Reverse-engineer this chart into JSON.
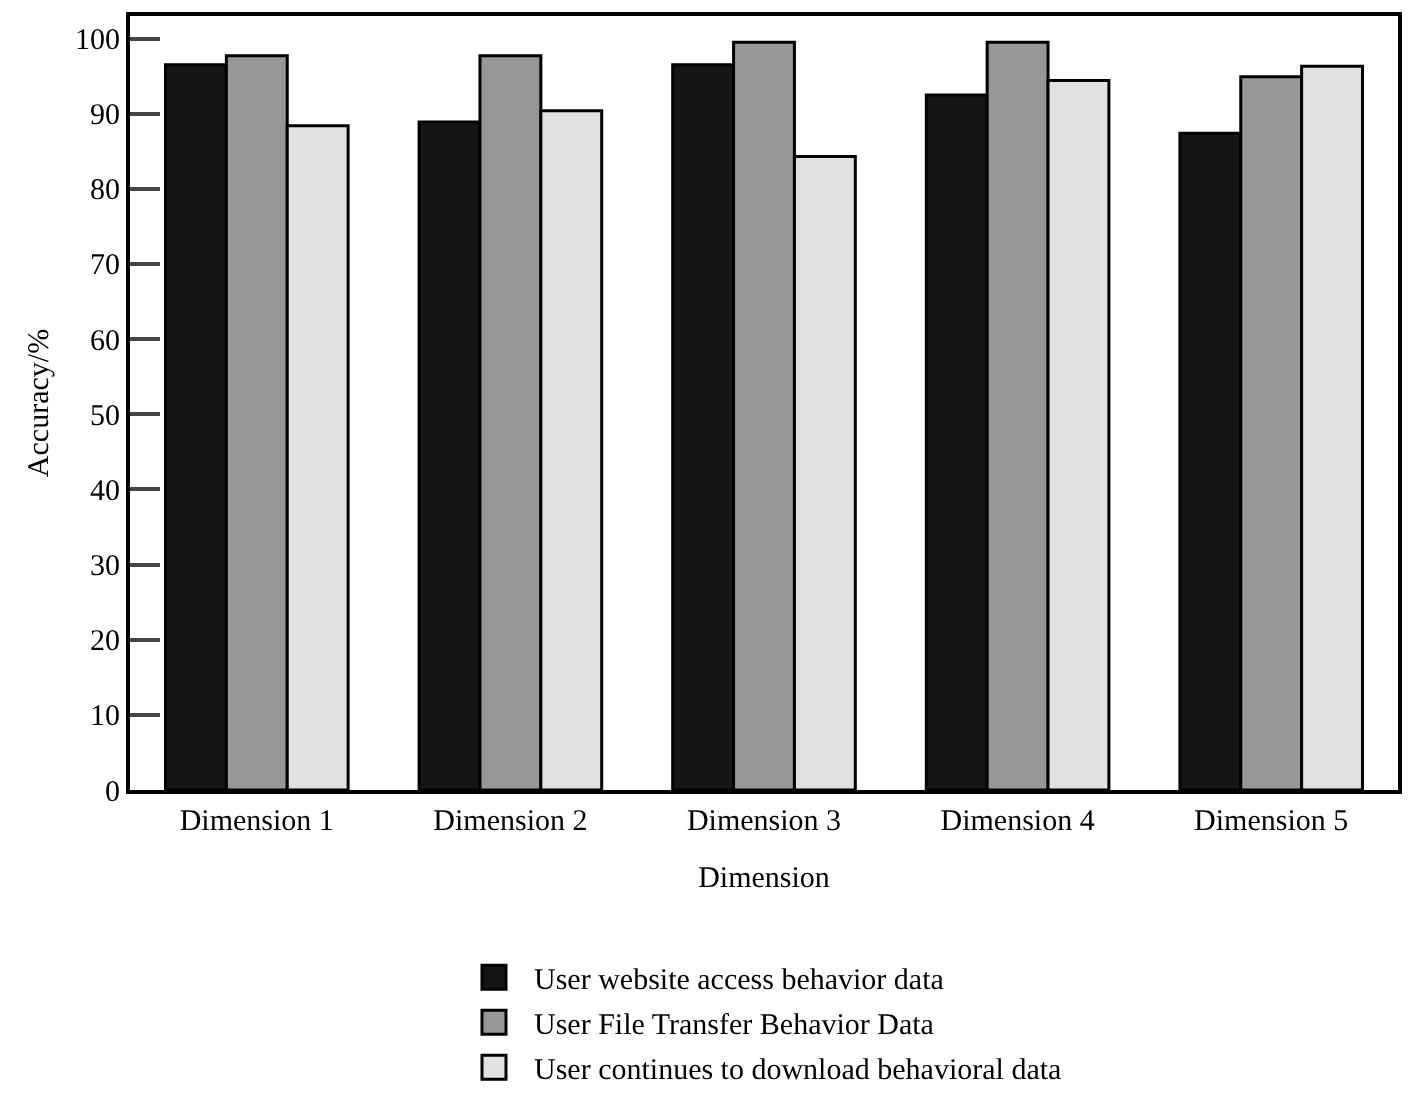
{
  "chart_data": {
    "type": "bar",
    "xlabel": "Dimension",
    "ylabel": "Accuracy/%",
    "categories": [
      "Dimension 1",
      "Dimension 2",
      "Dimension 3",
      "Dimension 4",
      "Dimension 5"
    ],
    "series": [
      {
        "name": "User website access behavior data",
        "color": "#151515",
        "values": [
          96.5,
          88.9,
          96.5,
          92.5,
          87.4
        ]
      },
      {
        "name": "User File Transfer Behavior Data",
        "color": "#979797",
        "values": [
          97.7,
          97.7,
          99.5,
          99.5,
          94.9
        ]
      },
      {
        "name": "User continues to download behavioral data",
        "color": "#e1e1e1",
        "values": [
          88.4,
          90.4,
          84.3,
          94.4,
          96.3
        ]
      }
    ],
    "ylim": [
      0,
      103
    ],
    "yticks": [
      0,
      10,
      20,
      30,
      40,
      50,
      60,
      70,
      80,
      90,
      100
    ],
    "grid": false,
    "legend": "bottom"
  }
}
